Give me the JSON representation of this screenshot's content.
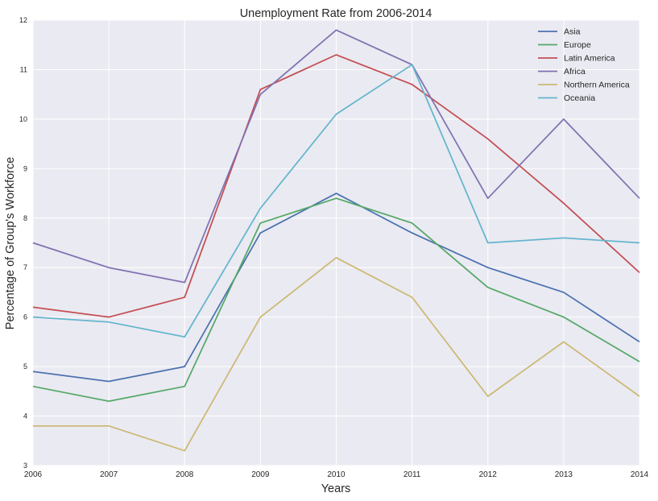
{
  "chart_data": {
    "type": "line",
    "title": "Unemployment Rate from 2006-2014",
    "xlabel": "Years",
    "ylabel": "Percentage of Group's Workforce",
    "x": [
      2006,
      2007,
      2008,
      2009,
      2010,
      2011,
      2012,
      2013,
      2014
    ],
    "xlim": [
      2006,
      2014
    ],
    "ylim": [
      3,
      12
    ],
    "x_ticks": [
      "2006",
      "2007",
      "2008",
      "2009",
      "2010",
      "2011",
      "2012",
      "2013",
      "2014"
    ],
    "y_ticks": [
      "3",
      "4",
      "5",
      "6",
      "7",
      "8",
      "9",
      "10",
      "11",
      "12"
    ],
    "grid": true,
    "legend_position": "top-right",
    "series": [
      {
        "name": "Asia",
        "color": "#4c72b0",
        "values": [
          4.9,
          4.7,
          5.0,
          7.7,
          8.5,
          7.7,
          7.0,
          6.5,
          5.5
        ]
      },
      {
        "name": "Europe",
        "color": "#55a868",
        "values": [
          4.6,
          4.3,
          4.6,
          7.9,
          8.4,
          7.9,
          6.6,
          6.0,
          5.1
        ]
      },
      {
        "name": "Latin America",
        "color": "#c44e52",
        "values": [
          6.2,
          6.0,
          6.4,
          10.6,
          11.3,
          10.7,
          9.6,
          8.3,
          6.9
        ]
      },
      {
        "name": "Africa",
        "color": "#8172b2",
        "values": [
          7.5,
          7.0,
          6.7,
          10.5,
          11.8,
          11.1,
          8.4,
          10.0,
          8.4
        ]
      },
      {
        "name": "Northern America",
        "color": "#ccb974",
        "values": [
          3.8,
          3.8,
          3.3,
          6.0,
          7.2,
          6.4,
          4.4,
          5.5,
          4.4
        ]
      },
      {
        "name": "Oceania",
        "color": "#64b5cd",
        "values": [
          6.0,
          5.9,
          5.6,
          8.2,
          10.1,
          11.1,
          7.5,
          7.6,
          7.5
        ]
      }
    ]
  }
}
